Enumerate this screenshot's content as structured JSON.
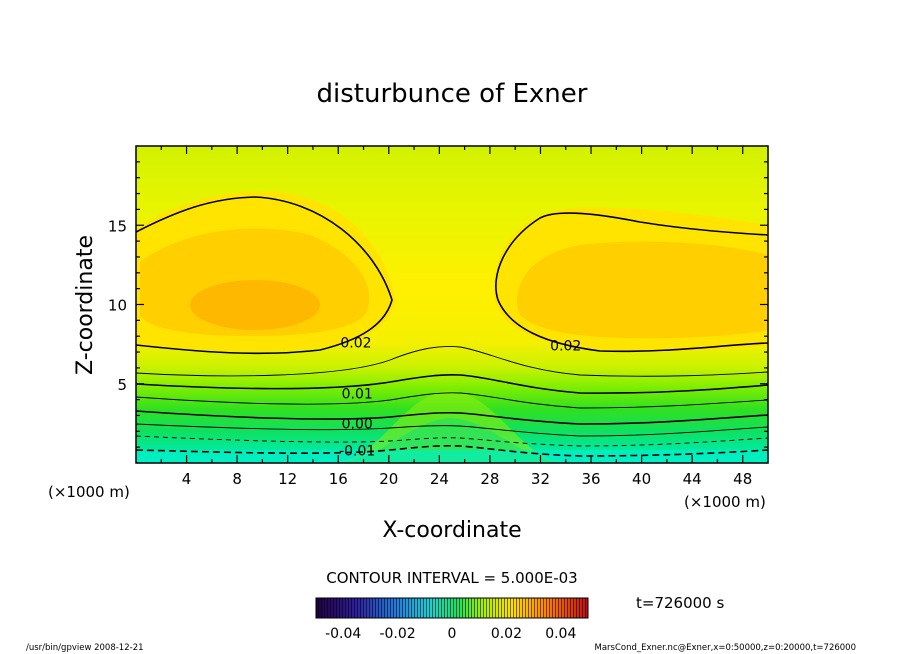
{
  "chart_data": {
    "type": "contour",
    "title": "disturbunce of Exner",
    "xlabel": "X-coordinate",
    "ylabel": "Z-coordinate",
    "x_unit_left": "(×1000 m)",
    "x_unit_right": "(×1000 m)",
    "xlim": [
      0,
      50
    ],
    "ylim": [
      0,
      20
    ],
    "x_ticks": [
      4,
      8,
      12,
      16,
      20,
      24,
      28,
      32,
      36,
      40,
      44,
      48
    ],
    "y_ticks": [
      5,
      10,
      15
    ],
    "contour_interval_text": "CONTOUR INTERVAL = 5.000E-03",
    "contour_labels": [
      {
        "text": "0.02",
        "x": 17.4,
        "y": 7.6
      },
      {
        "text": "0.02",
        "x": 34.0,
        "y": 7.4
      },
      {
        "text": "0.01",
        "x": 17.5,
        "y": 4.4
      },
      {
        "text": "0.00",
        "x": 17.5,
        "y": 2.5
      },
      {
        "text": "-0.01",
        "x": 17.5,
        "y": 0.8
      }
    ],
    "colorbar": {
      "range": [
        -0.05,
        0.05
      ],
      "tick_labels": [
        "-0.04",
        "-0.02",
        "0",
        "0.02",
        "0.04"
      ],
      "tick_values": [
        -0.04,
        -0.02,
        0,
        0.02,
        0.04
      ]
    },
    "time_label": "t=726000 s"
  },
  "footer": {
    "left": "/usr/bin/gpview   2008-12-21",
    "right": "MarsCond_Exner.nc@Exner,x=0:50000,z=0:20000,t=726000"
  },
  "colors": {
    "band_teal": "#00f0c0",
    "band_green": "#10e060",
    "band_lime": "#c8ff00",
    "band_yellow": "#ffee00",
    "band_orange": "#ffb000"
  }
}
